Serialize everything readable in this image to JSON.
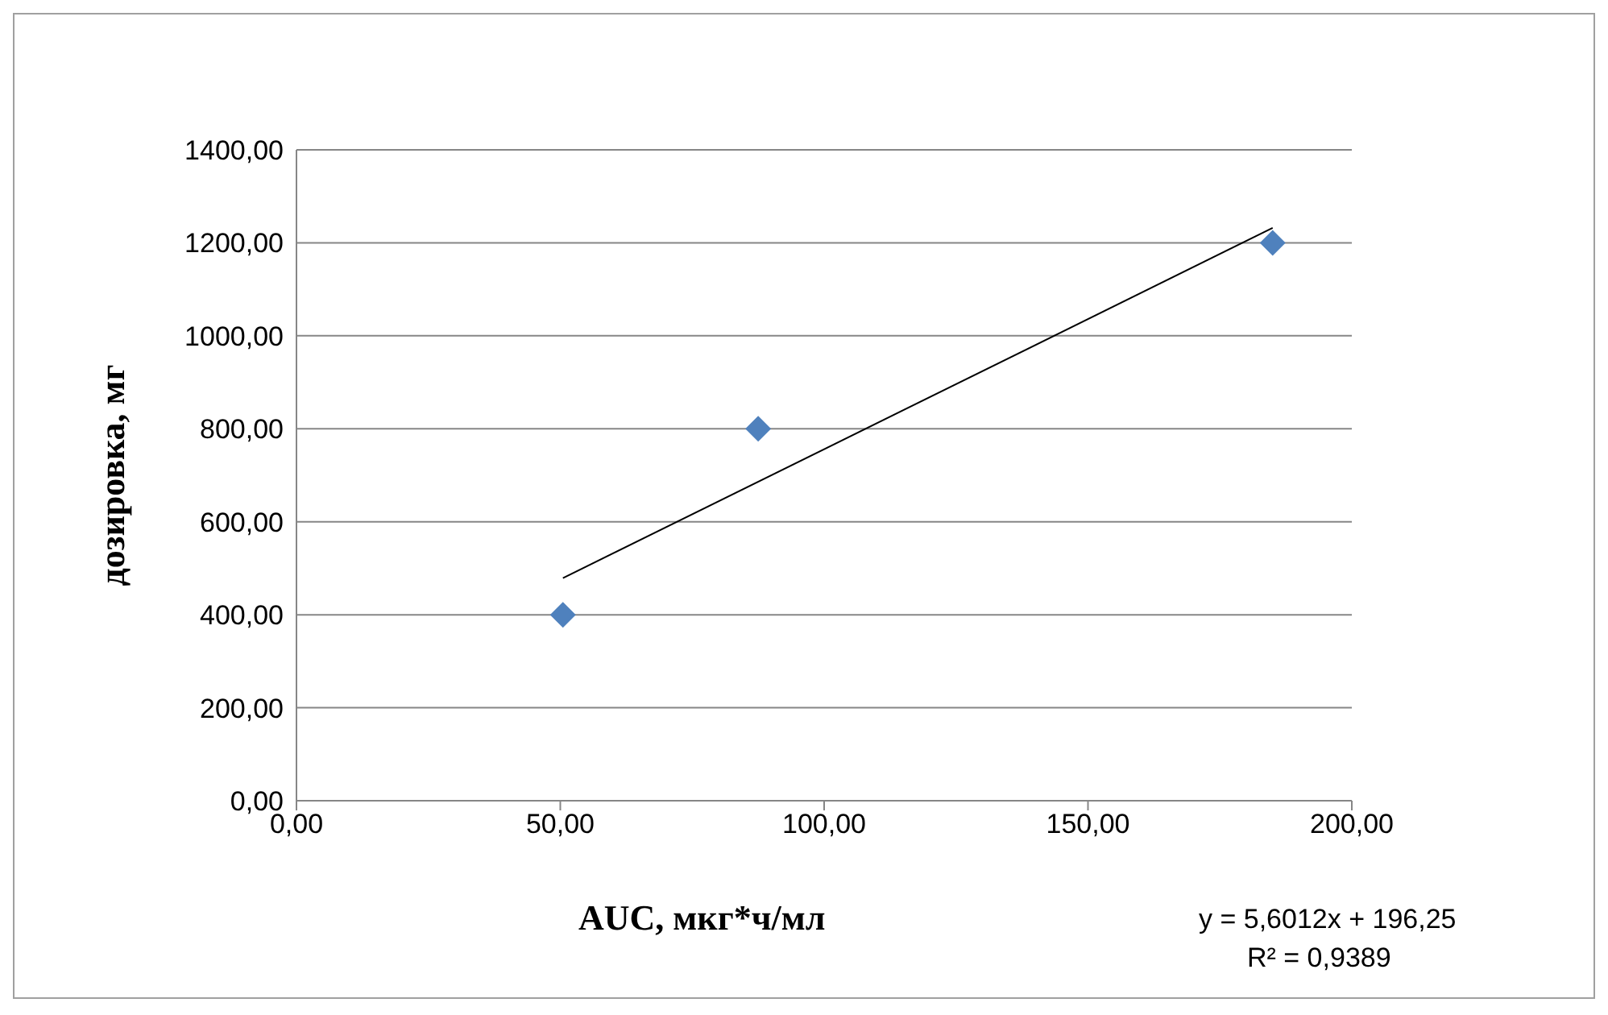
{
  "chart_data": {
    "type": "scatter",
    "xlabel": "AUC, мкг*ч/мл",
    "ylabel": "дозировка, мг",
    "xlim": [
      0,
      200
    ],
    "xticks": [
      {
        "value": 0,
        "label": "0,00"
      },
      {
        "value": 50,
        "label": "50,00"
      },
      {
        "value": 100,
        "label": "100,00"
      },
      {
        "value": 150,
        "label": "150,00"
      },
      {
        "value": 200,
        "label": "200,00"
      }
    ],
    "ylim": [
      0,
      1400
    ],
    "yticks": [
      {
        "value": 0,
        "label": "0,00"
      },
      {
        "value": 200,
        "label": "200,00"
      },
      {
        "value": 400,
        "label": "400,00"
      },
      {
        "value": 600,
        "label": "600,00"
      },
      {
        "value": 800,
        "label": "800,00"
      },
      {
        "value": 1000,
        "label": "1000,00"
      },
      {
        "value": 1200,
        "label": "1200,00"
      },
      {
        "value": 1400,
        "label": "1400,00"
      }
    ],
    "grid": "y",
    "marker": "diamond",
    "series": [
      {
        "type": "scatter",
        "color": "#4f81bd",
        "x": [
          50.5,
          87.5,
          185
        ],
        "values": [
          400,
          800,
          1200
        ]
      },
      {
        "type": "line",
        "color": "#000000",
        "marker": "none",
        "line_style": "solid",
        "x": [
          50.5,
          185
        ],
        "values": [
          479,
          1232
        ]
      }
    ],
    "annotations": [
      "y = 5,6012x + 196,25",
      "R² = 0,9389"
    ]
  }
}
